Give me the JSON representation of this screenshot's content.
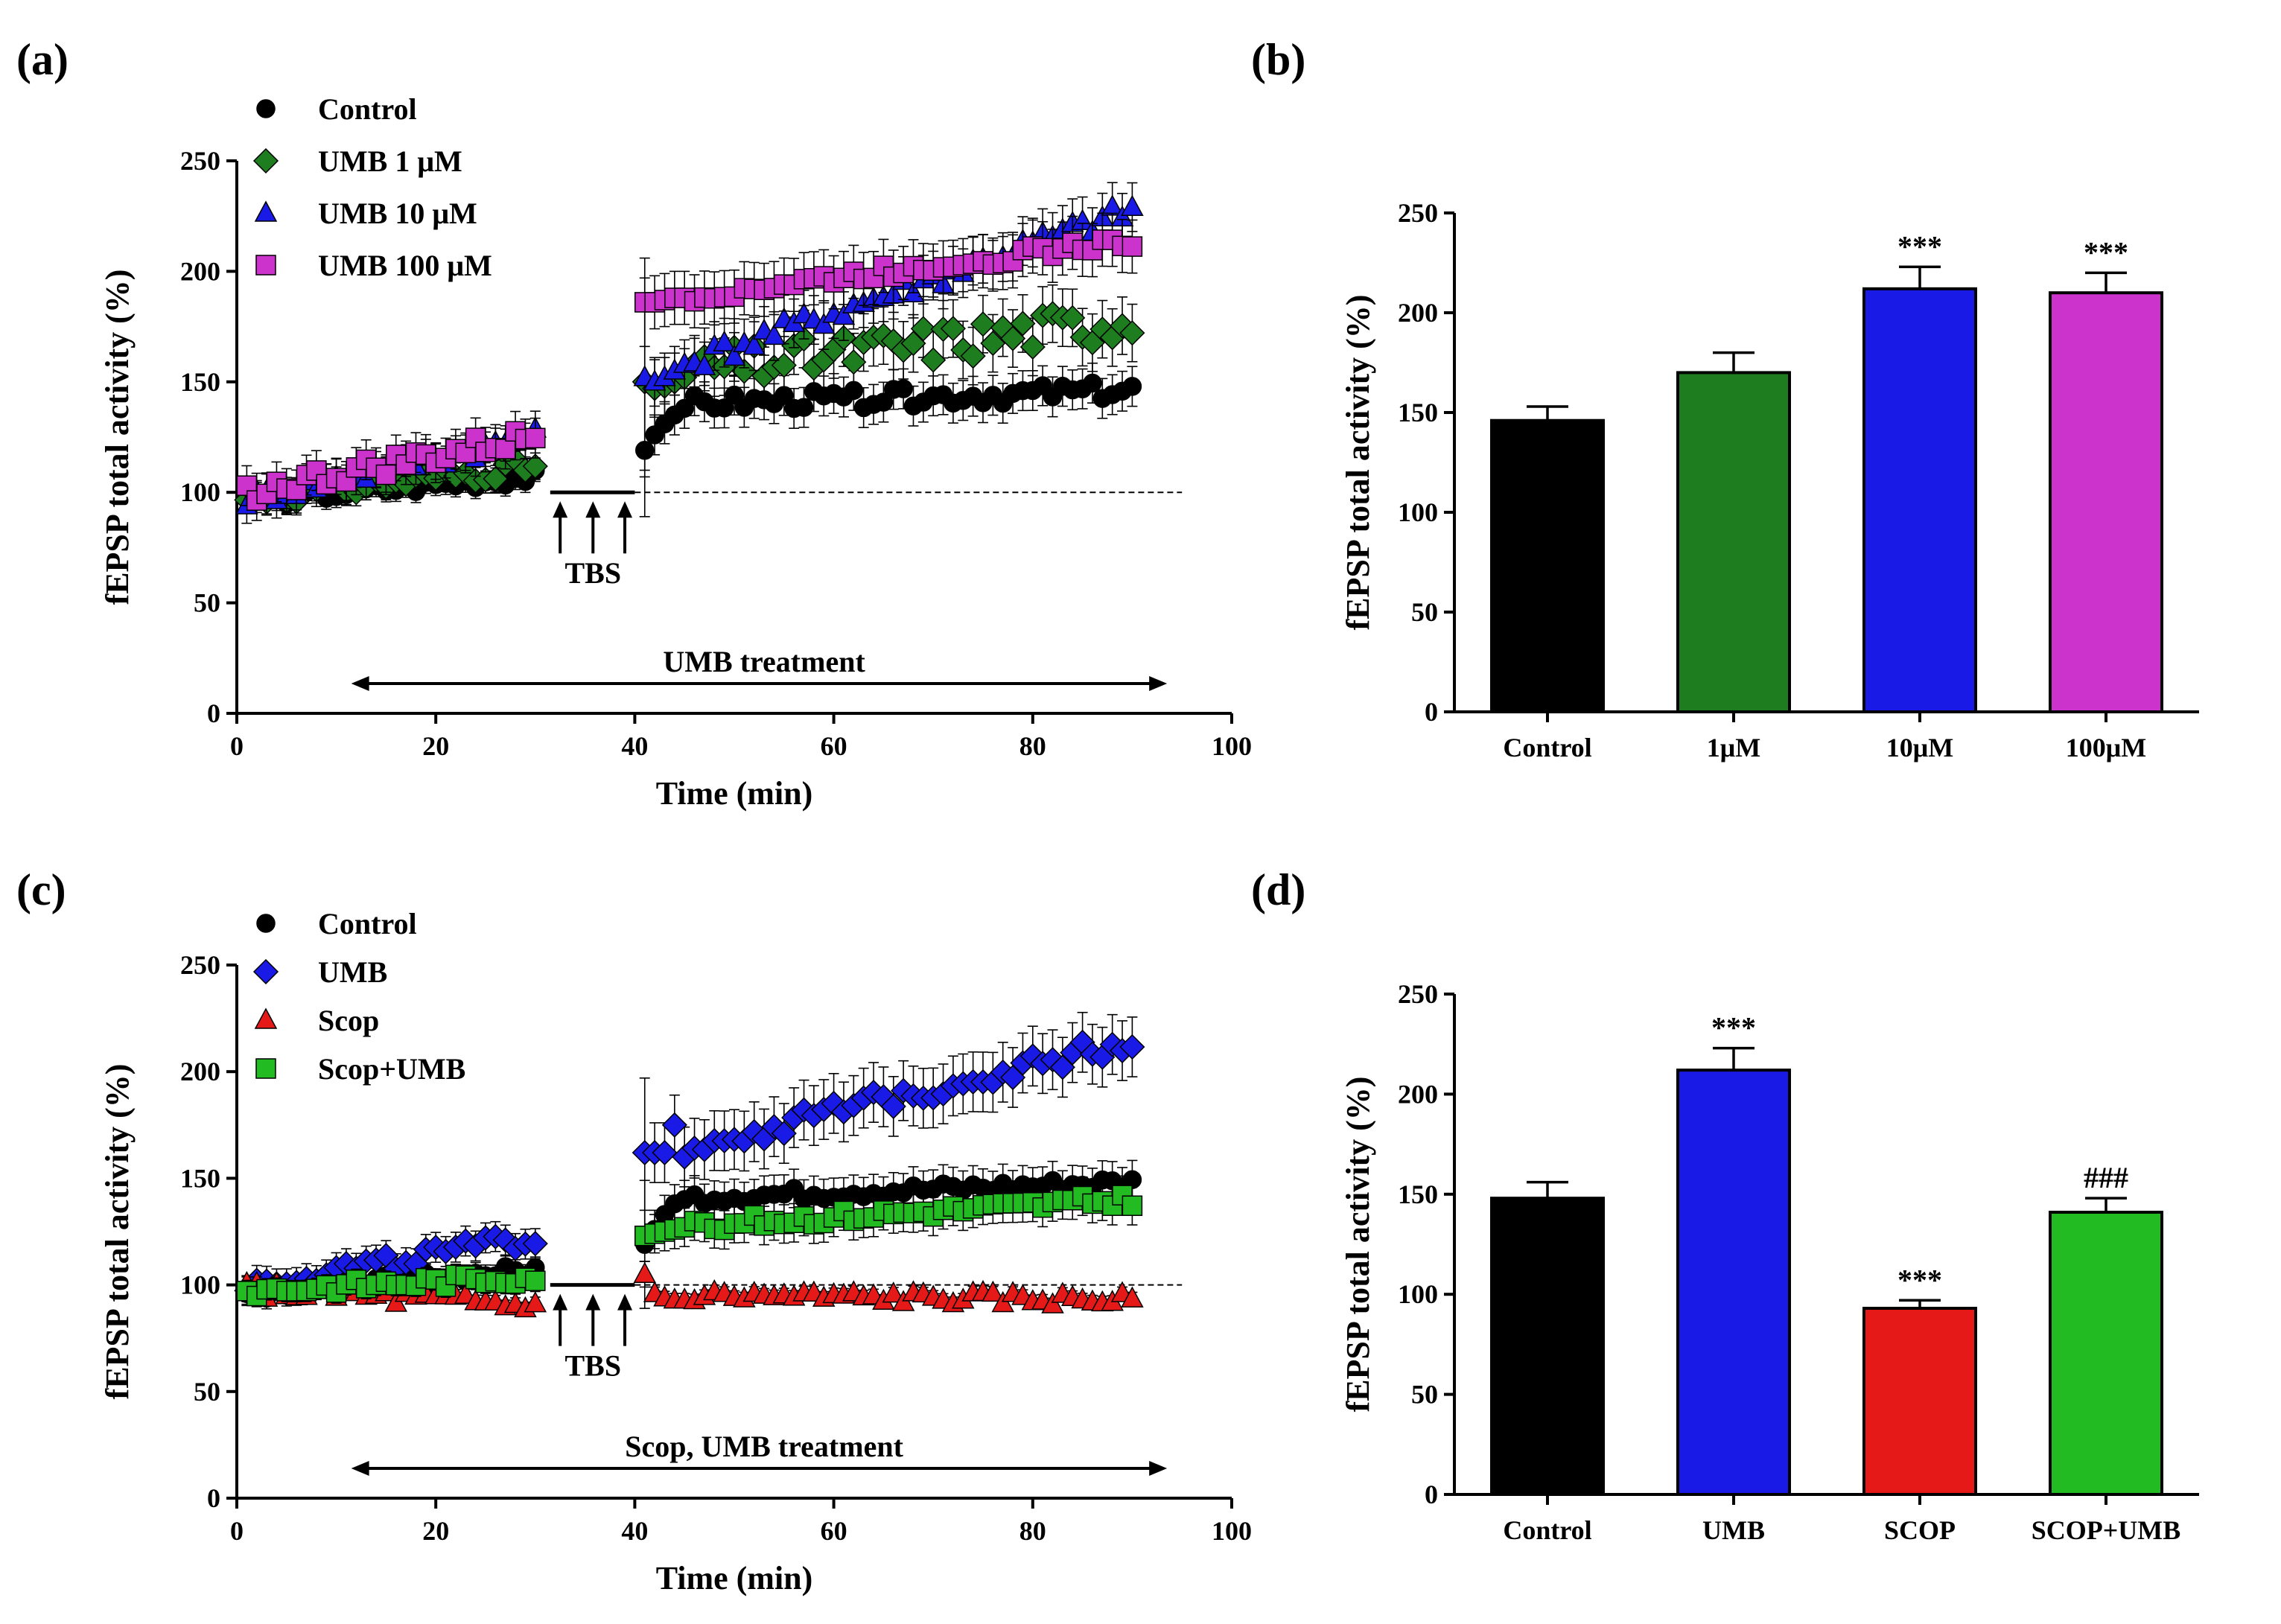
{
  "chart_data": [
    {
      "type": "scatter",
      "panel_label": "(a)",
      "xlabel": "Time (min)",
      "ylabel": "fEPSP total activity (%)",
      "xlim": [
        0,
        100
      ],
      "ylim": [
        0,
        250
      ],
      "xticks": [
        0,
        20,
        40,
        60,
        80,
        100
      ],
      "yticks": [
        0,
        50,
        100,
        150,
        200,
        250
      ],
      "baseline": 100,
      "tbs_label": "TBS",
      "treatment_label": "UMB treatment",
      "series": [
        {
          "name": "Control",
          "marker": "circle",
          "color": "#000000",
          "pre": {
            "start": 96,
            "end": 107,
            "noise": 3,
            "err": 5
          },
          "post": {
            "jump": [
              119,
              126,
              131,
              135,
              138
            ],
            "plateau": 140,
            "end": 146,
            "noise": 4,
            "err": 9,
            "first_err": 30
          }
        },
        {
          "name": "UMB 1 μM",
          "marker": "diamond",
          "color": "#1e7d1e",
          "pre": {
            "start": 97,
            "end": 112,
            "noise": 4,
            "err": 6
          },
          "post": {
            "jump": [
              150,
              147,
              148,
              150,
              152
            ],
            "plateau": 155,
            "end": 178,
            "noise": 9,
            "err": 13,
            "first_err": 40
          }
        },
        {
          "name": "UMB 10 μM",
          "marker": "triangle",
          "color": "#1a1ae6",
          "pre": {
            "start": 97,
            "end": 125,
            "noise": 4,
            "err": 8
          },
          "post": {
            "jump": [
              152,
              150,
              152,
              155,
              158
            ],
            "plateau": 160,
            "end": 228,
            "noise": 5,
            "err": 11,
            "first_err": 45
          }
        },
        {
          "name": "UMB 100 μM",
          "marker": "square",
          "color": "#cc33cc",
          "pre": {
            "start": 100,
            "end": 125,
            "noise": 5,
            "err": 9
          },
          "post": {
            "jump": [
              186,
              186,
              187,
              188,
              188
            ],
            "plateau": 189,
            "end": 214,
            "noise": 3,
            "err": 12,
            "first_err": 20
          }
        }
      ]
    },
    {
      "type": "bar",
      "panel_label": "(b)",
      "ylabel": "fEPSP total activity (%)",
      "ylim": [
        0,
        250
      ],
      "yticks": [
        0,
        50,
        100,
        150,
        200,
        250
      ],
      "categories": [
        "Control",
        "1μM",
        "10μM",
        "100μM"
      ],
      "values": [
        146,
        170,
        212,
        210
      ],
      "errors": [
        7,
        10,
        11,
        10
      ],
      "colors": [
        "#000000",
        "#1e7d1e",
        "#1a1ae6",
        "#cc33cc"
      ],
      "annotations": [
        "",
        "",
        "***",
        "***"
      ]
    },
    {
      "type": "scatter",
      "panel_label": "(c)",
      "xlabel": "Time (min)",
      "ylabel": "fEPSP total activity (%)",
      "xlim": [
        0,
        100
      ],
      "ylim": [
        0,
        250
      ],
      "xticks": [
        0,
        20,
        40,
        60,
        80,
        100
      ],
      "yticks": [
        0,
        50,
        100,
        150,
        200,
        250
      ],
      "baseline": 100,
      "tbs_label": "TBS",
      "treatment_label": "Scop, UMB treatment",
      "series": [
        {
          "name": "Control",
          "marker": "circle",
          "color": "#000000",
          "pre": {
            "start": 96,
            "end": 107,
            "noise": 3,
            "err": 5
          },
          "post": {
            "jump": [
              119,
              126,
              133,
              138,
              140
            ],
            "plateau": 141,
            "end": 148,
            "noise": 3,
            "err": 9,
            "first_err": 30
          }
        },
        {
          "name": "UMB",
          "marker": "diamond",
          "color": "#1a1ae6",
          "pre": {
            "start": 100,
            "end": 122,
            "noise": 4,
            "err": 7
          },
          "post": {
            "jump": [
              162,
              162,
              162,
              175,
              160
            ],
            "plateau": 165,
            "end": 215,
            "noise": 5,
            "err": 14,
            "first_err": 35
          }
        },
        {
          "name": "Scop",
          "marker": "triangle",
          "color": "#e61919",
          "pre": {
            "start": 98,
            "end": 90,
            "noise": 4,
            "err": 3
          },
          "post": {
            "jump": [
              105,
              96,
              94,
              93,
              93
            ],
            "plateau": 95,
            "end": 93,
            "noise": 3,
            "err": 3,
            "first_err": 6
          }
        },
        {
          "name": "Scop+UMB",
          "marker": "square",
          "color": "#22bb22",
          "pre": {
            "start": 97,
            "end": 104,
            "noise": 3,
            "err": 5
          },
          "post": {
            "jump": [
              123,
              124,
              125,
              126,
              127
            ],
            "plateau": 128,
            "end": 140,
            "noise": 3,
            "err": 9,
            "first_err": 12
          }
        }
      ]
    },
    {
      "type": "bar",
      "panel_label": "(d)",
      "ylabel": "fEPSP total activity (%)",
      "ylim": [
        0,
        250
      ],
      "yticks": [
        0,
        50,
        100,
        150,
        200,
        250
      ],
      "categories": [
        "Control",
        "UMB",
        "SCOP",
        "SCOP+UMB"
      ],
      "values": [
        148,
        212,
        93,
        141
      ],
      "errors": [
        8,
        11,
        4,
        7
      ],
      "colors": [
        "#000000",
        "#1a1ae6",
        "#e61919",
        "#22bb22"
      ],
      "annotations": [
        "",
        "***",
        "***",
        "###"
      ]
    }
  ]
}
